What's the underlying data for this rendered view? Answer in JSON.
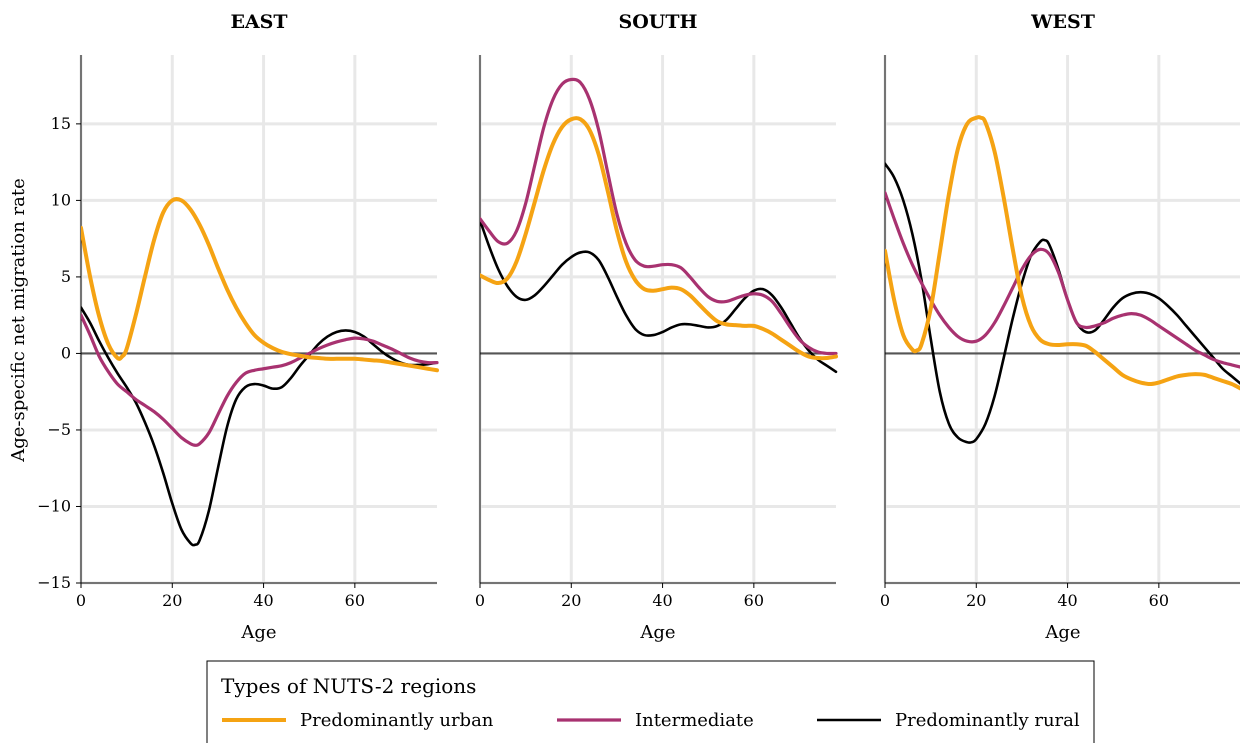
{
  "chart_data": {
    "type": "line",
    "ylabel": "Age-specific net migration rate",
    "xlabel": "Age",
    "xlim": [
      0,
      78
    ],
    "ylim": [
      -15,
      19.5
    ],
    "xticks": [
      0,
      20,
      40,
      60
    ],
    "yticks": [
      -15,
      -10,
      -5,
      0,
      5,
      10,
      15
    ],
    "ytick_labels": [
      "−15",
      "−10",
      "−5",
      "0",
      "5",
      "10",
      "15"
    ],
    "grid": true,
    "colors": {
      "Predominantly urban": "#F5A313",
      "Intermediate": "#A83270",
      "Predominantly rural": "#000000"
    },
    "legend": {
      "title": "Types of NUTS-2 regions",
      "placement": "bottom",
      "entries": [
        "Predominantly urban",
        "Intermediate",
        "Predominantly rural"
      ]
    },
    "panels": [
      {
        "title": "EAST",
        "series": [
          {
            "name": "Predominantly urban",
            "x": [
              0,
              2,
              4,
              6,
              8,
              9,
              10,
              12,
              14,
              16,
              18,
              20,
              22,
              24,
              26,
              28,
              30,
              32,
              34,
              36,
              38,
              40,
              42,
              44,
              46,
              48,
              50,
              52,
              54,
              56,
              58,
              60,
              62,
              64,
              66,
              68,
              70,
              72,
              74,
              76,
              78
            ],
            "y": [
              8.2,
              5.0,
              2.4,
              0.6,
              -0.3,
              -0.2,
              0.3,
              2.5,
              5.0,
              7.4,
              9.2,
              10.0,
              10.0,
              9.4,
              8.4,
              7.1,
              5.6,
              4.2,
              3.0,
              2.0,
              1.2,
              0.7,
              0.35,
              0.1,
              -0.05,
              -0.15,
              -0.25,
              -0.3,
              -0.35,
              -0.35,
              -0.35,
              -0.35,
              -0.4,
              -0.45,
              -0.5,
              -0.6,
              -0.7,
              -0.8,
              -0.9,
              -1.0,
              -1.1
            ]
          },
          {
            "name": "Intermediate",
            "x": [
              0,
              2,
              4,
              6,
              8,
              10,
              12,
              14,
              16,
              18,
              20,
              22,
              24,
              25,
              26,
              28,
              30,
              32,
              34,
              36,
              38,
              40,
              42,
              44,
              46,
              48,
              50,
              52,
              54,
              56,
              58,
              60,
              62,
              64,
              66,
              68,
              70,
              72,
              74,
              76,
              78
            ],
            "y": [
              2.5,
              1.2,
              -0.2,
              -1.2,
              -2.0,
              -2.5,
              -3.0,
              -3.4,
              -3.8,
              -4.3,
              -4.9,
              -5.5,
              -5.9,
              -6.0,
              -5.9,
              -5.2,
              -4.0,
              -2.8,
              -1.9,
              -1.3,
              -1.1,
              -1.0,
              -0.9,
              -0.8,
              -0.6,
              -0.3,
              0.0,
              0.3,
              0.55,
              0.75,
              0.9,
              1.0,
              0.95,
              0.8,
              0.55,
              0.3,
              0.0,
              -0.3,
              -0.5,
              -0.6,
              -0.6
            ]
          },
          {
            "name": "Predominantly rural",
            "x": [
              0,
              2,
              4,
              6,
              8,
              10,
              12,
              14,
              16,
              18,
              20,
              22,
              24,
              25,
              26,
              28,
              30,
              32,
              34,
              36,
              38,
              40,
              42,
              44,
              46,
              48,
              50,
              52,
              54,
              56,
              58,
              60,
              62,
              64,
              66,
              68,
              70,
              72,
              74,
              76,
              78
            ],
            "y": [
              3.0,
              2.0,
              0.8,
              -0.3,
              -1.3,
              -2.2,
              -3.2,
              -4.5,
              -6.0,
              -7.8,
              -9.8,
              -11.5,
              -12.4,
              -12.5,
              -12.2,
              -10.3,
              -7.5,
              -4.8,
              -3.0,
              -2.2,
              -2.0,
              -2.1,
              -2.3,
              -2.2,
              -1.6,
              -0.8,
              -0.1,
              0.6,
              1.1,
              1.4,
              1.5,
              1.4,
              1.1,
              0.6,
              0.1,
              -0.3,
              -0.6,
              -0.75,
              -0.75,
              -0.7,
              -0.6
            ]
          }
        ]
      },
      {
        "title": "SOUTH",
        "series": [
          {
            "name": "Predominantly urban",
            "x": [
              0,
              2,
              4,
              6,
              8,
              10,
              12,
              14,
              16,
              18,
              20,
              22,
              24,
              26,
              28,
              30,
              32,
              34,
              36,
              38,
              40,
              42,
              44,
              46,
              48,
              50,
              52,
              54,
              56,
              58,
              60,
              62,
              64,
              66,
              68,
              70,
              72,
              74,
              76,
              78
            ],
            "y": [
              5.1,
              4.8,
              4.6,
              4.9,
              6.0,
              7.8,
              9.9,
              12.0,
              13.7,
              14.8,
              15.3,
              15.3,
              14.6,
              13.0,
              10.6,
              8.0,
              6.0,
              4.8,
              4.2,
              4.1,
              4.2,
              4.3,
              4.2,
              3.8,
              3.2,
              2.6,
              2.1,
              1.9,
              1.85,
              1.8,
              1.8,
              1.6,
              1.3,
              0.9,
              0.5,
              0.1,
              -0.2,
              -0.3,
              -0.3,
              -0.2
            ]
          },
          {
            "name": "Intermediate",
            "x": [
              0,
              2,
              4,
              6,
              8,
              10,
              12,
              14,
              16,
              18,
              20,
              22,
              24,
              26,
              28,
              30,
              32,
              34,
              36,
              38,
              40,
              42,
              44,
              46,
              48,
              50,
              52,
              54,
              56,
              58,
              60,
              62,
              64,
              66,
              68,
              70,
              72,
              74,
              76,
              78
            ],
            "y": [
              8.8,
              8.0,
              7.3,
              7.2,
              8.0,
              9.8,
              12.3,
              14.8,
              16.6,
              17.6,
              17.9,
              17.7,
              16.6,
              14.6,
              11.8,
              9.1,
              7.2,
              6.1,
              5.7,
              5.7,
              5.8,
              5.8,
              5.6,
              5.0,
              4.3,
              3.7,
              3.4,
              3.4,
              3.6,
              3.8,
              3.9,
              3.8,
              3.4,
              2.6,
              1.7,
              0.9,
              0.4,
              0.1,
              0.0,
              0.0
            ]
          },
          {
            "name": "Predominantly rural",
            "x": [
              0,
              2,
              4,
              6,
              8,
              10,
              12,
              14,
              16,
              18,
              20,
              22,
              24,
              26,
              28,
              30,
              32,
              34,
              36,
              38,
              40,
              42,
              44,
              46,
              48,
              50,
              52,
              54,
              56,
              58,
              60,
              62,
              64,
              66,
              68,
              70,
              72,
              74,
              76,
              78
            ],
            "y": [
              8.7,
              7.0,
              5.5,
              4.4,
              3.7,
              3.5,
              3.8,
              4.4,
              5.1,
              5.8,
              6.3,
              6.6,
              6.6,
              6.1,
              5.0,
              3.7,
              2.5,
              1.6,
              1.2,
              1.2,
              1.4,
              1.7,
              1.9,
              1.9,
              1.8,
              1.7,
              1.8,
              2.2,
              2.9,
              3.6,
              4.1,
              4.2,
              3.8,
              3.0,
              2.0,
              1.0,
              0.2,
              -0.4,
              -0.8,
              -1.2
            ]
          }
        ]
      },
      {
        "title": "WEST",
        "series": [
          {
            "name": "Predominantly urban",
            "x": [
              0,
              2,
              4,
              6,
              7,
              8,
              10,
              12,
              14,
              16,
              18,
              20,
              21,
              22,
              24,
              26,
              28,
              30,
              32,
              34,
              36,
              38,
              40,
              42,
              44,
              46,
              48,
              50,
              52,
              54,
              56,
              58,
              60,
              62,
              64,
              66,
              68,
              70,
              72,
              74,
              76,
              78
            ],
            "y": [
              6.7,
              3.5,
              1.2,
              0.25,
              0.2,
              0.6,
              2.9,
              6.6,
              10.4,
              13.4,
              15.0,
              15.4,
              15.4,
              15.1,
              13.2,
              10.2,
              6.8,
              3.7,
              1.8,
              0.9,
              0.6,
              0.55,
              0.6,
              0.6,
              0.5,
              0.1,
              -0.4,
              -0.9,
              -1.4,
              -1.7,
              -1.9,
              -2.0,
              -1.9,
              -1.7,
              -1.5,
              -1.4,
              -1.35,
              -1.4,
              -1.6,
              -1.8,
              -2.0,
              -2.3
            ]
          },
          {
            "name": "Intermediate",
            "x": [
              0,
              2,
              4,
              6,
              8,
              10,
              12,
              14,
              16,
              18,
              20,
              22,
              24,
              26,
              28,
              30,
              32,
              34,
              36,
              38,
              40,
              42,
              44,
              46,
              48,
              50,
              52,
              54,
              56,
              58,
              60,
              62,
              64,
              66,
              68,
              70,
              72,
              74,
              76,
              78
            ],
            "y": [
              10.5,
              8.8,
              7.2,
              5.8,
              4.6,
              3.5,
              2.5,
              1.7,
              1.1,
              0.8,
              0.8,
              1.2,
              2.0,
              3.1,
              4.3,
              5.5,
              6.4,
              6.8,
              6.5,
              5.3,
              3.5,
              2.0,
              1.7,
              1.8,
              2.0,
              2.3,
              2.5,
              2.6,
              2.5,
              2.2,
              1.8,
              1.4,
              1.0,
              0.6,
              0.2,
              -0.1,
              -0.4,
              -0.6,
              -0.75,
              -0.9
            ]
          },
          {
            "name": "Predominantly rural",
            "x": [
              0,
              2,
              4,
              6,
              8,
              10,
              12,
              14,
              16,
              18,
              19,
              20,
              22,
              24,
              26,
              28,
              30,
              32,
              34,
              35,
              36,
              38,
              40,
              42,
              44,
              46,
              48,
              50,
              52,
              54,
              56,
              58,
              60,
              62,
              64,
              66,
              68,
              70,
              72,
              74,
              76,
              78
            ],
            "y": [
              12.4,
              11.5,
              10.0,
              7.8,
              4.8,
              1.0,
              -2.5,
              -4.6,
              -5.5,
              -5.8,
              -5.8,
              -5.6,
              -4.6,
              -2.8,
              -0.3,
              2.3,
              4.6,
              6.4,
              7.3,
              7.4,
              7.1,
              5.5,
              3.5,
              2.0,
              1.4,
              1.5,
              2.2,
              3.0,
              3.6,
              3.9,
              4.0,
              3.9,
              3.6,
              3.1,
              2.5,
              1.8,
              1.1,
              0.4,
              -0.3,
              -1.0,
              -1.5,
              -2.0
            ]
          }
        ]
      }
    ]
  }
}
